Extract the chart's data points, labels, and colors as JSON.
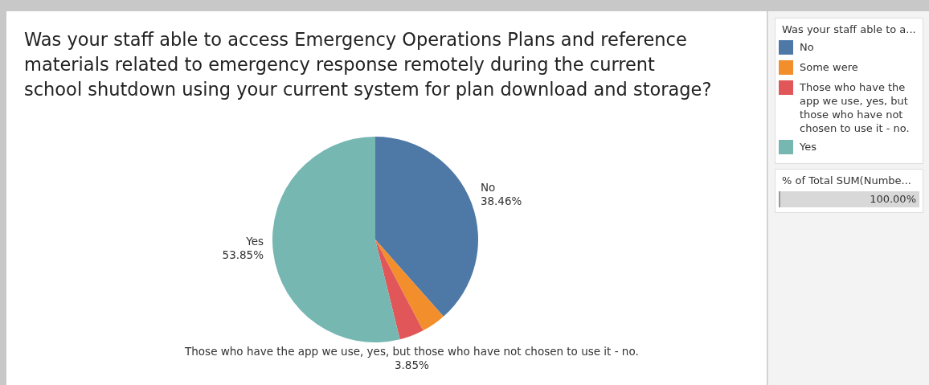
{
  "chart_data": {
    "type": "pie",
    "title": "Was your staff able to access Emergency Operations Plans and reference materials related to emergency response remotely during  the current school shutdown using your current system for plan download and storage?",
    "categories": [
      "No",
      "Some were",
      "Those who have the app we use, yes, but those who have not chosen to use it - no.",
      "Yes"
    ],
    "values": [
      38.46,
      3.85,
      3.85,
      53.85
    ],
    "colors": [
      "#4e79a7",
      "#f28e2b",
      "#e15759",
      "#76b7b2"
    ],
    "value_labels": [
      "38.46%",
      null,
      "3.85%",
      "53.85%"
    ],
    "legend": "right",
    "legend_title": "Was your staff able to a...",
    "annotations": [
      "% of Total SUM(Numbe...",
      "100.00%"
    ]
  }
}
